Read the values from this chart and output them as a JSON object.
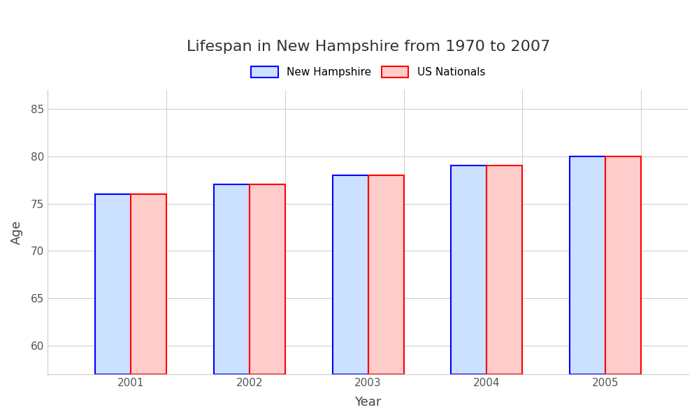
{
  "title": "Lifespan in New Hampshire from 1970 to 2007",
  "xlabel": "Year",
  "ylabel": "Age",
  "categories": [
    2001,
    2002,
    2003,
    2004,
    2005
  ],
  "nh_values": [
    76,
    77,
    78,
    79,
    80
  ],
  "us_values": [
    76,
    77,
    78,
    79,
    80
  ],
  "nh_label": "New Hampshire",
  "us_label": "US Nationals",
  "nh_edge_color": "#0000ff",
  "nh_face_color": "#cce0ff",
  "us_edge_color": "#ff0000",
  "us_face_color": "#ffcccc",
  "bar_width": 0.3,
  "ylim_min": 57,
  "ylim_max": 87,
  "yticks": [
    60,
    65,
    70,
    75,
    80,
    85
  ],
  "background_color": "#ffffff",
  "grid_color": "#cccccc",
  "title_fontsize": 16,
  "axis_label_fontsize": 13,
  "tick_fontsize": 11,
  "legend_fontsize": 11
}
